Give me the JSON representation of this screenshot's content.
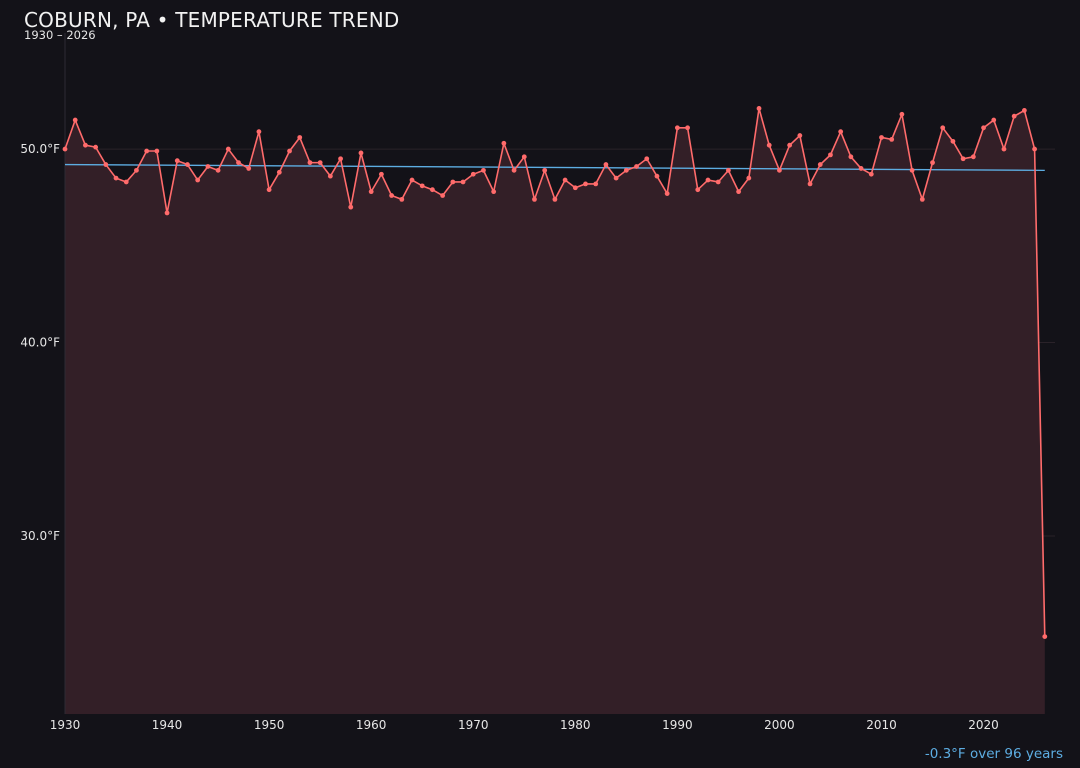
{
  "header": {
    "title": "COBURN, PA • TEMPERATURE TREND",
    "subtitle": "1930 – 2026"
  },
  "footer": {
    "trend_note": "-0.3°F over 96 years"
  },
  "colors": {
    "background": "#131218",
    "series_line": "#ff6b6b",
    "area_fill": "#331f27",
    "trend_line": "#5dade2",
    "grid": "#2a2229",
    "axis_text": "#e6e6e6"
  },
  "chart_data": {
    "type": "line",
    "title": "COBURN, PA • TEMPERATURE TREND",
    "subtitle": "1930 – 2026",
    "xlabel": "",
    "ylabel": "",
    "xlim": [
      1930,
      2027
    ],
    "ylim": [
      20.8,
      56
    ],
    "x_ticks": [
      1930,
      1940,
      1950,
      1960,
      1970,
      1980,
      1990,
      2000,
      2010,
      2020
    ],
    "y_ticks": [
      30.0,
      40.0,
      50.0
    ],
    "y_tick_labels": [
      "30.0°F",
      "40.0°F",
      "50.0°F"
    ],
    "grid": true,
    "area_under_line": true,
    "series": [
      {
        "x": [
          1930,
          1931,
          1932,
          1933,
          1934,
          1935,
          1936,
          1937,
          1938,
          1939,
          1940,
          1941,
          1942,
          1943,
          1944,
          1945,
          1946,
          1947,
          1948,
          1949,
          1950,
          1951,
          1952,
          1953,
          1954,
          1955,
          1956,
          1957,
          1958,
          1959,
          1960,
          1961,
          1962,
          1963,
          1964,
          1965,
          1966,
          1967,
          1968,
          1969,
          1970,
          1971,
          1972,
          1973,
          1974,
          1975,
          1976,
          1977,
          1978,
          1979,
          1980,
          1981,
          1982,
          1983,
          1984,
          1985,
          1986,
          1987,
          1988,
          1989,
          1990,
          1991,
          1992,
          1993,
          1994,
          1995,
          1996,
          1997,
          1998,
          1999,
          2000,
          2001,
          2002,
          2003,
          2004,
          2005,
          2006,
          2007,
          2008,
          2009,
          2010,
          2011,
          2012,
          2013,
          2014,
          2015,
          2016,
          2017,
          2018,
          2019,
          2020,
          2021,
          2022,
          2023,
          2024,
          2025,
          2026
        ],
        "values": [
          50.0,
          51.5,
          50.2,
          50.1,
          49.2,
          48.5,
          48.3,
          48.9,
          49.9,
          49.9,
          46.7,
          49.4,
          49.2,
          48.4,
          49.1,
          48.9,
          50.0,
          49.3,
          49.0,
          50.9,
          47.9,
          48.8,
          49.9,
          50.6,
          49.3,
          49.3,
          48.6,
          49.5,
          47.0,
          49.8,
          47.8,
          48.7,
          47.6,
          47.4,
          48.4,
          48.1,
          47.9,
          47.6,
          48.3,
          48.3,
          48.7,
          48.9,
          47.8,
          50.3,
          48.9,
          49.6,
          47.4,
          48.9,
          47.4,
          48.4,
          48.0,
          48.2,
          48.2,
          49.2,
          48.5,
          48.9,
          49.1,
          49.5,
          48.6,
          47.7,
          51.1,
          51.1,
          47.9,
          48.4,
          48.3,
          48.9,
          47.8,
          48.5,
          52.1,
          50.2,
          48.9,
          50.2,
          50.7,
          48.2,
          49.2,
          49.7,
          50.9,
          49.6,
          49.0,
          48.7,
          50.6,
          50.5,
          51.8,
          48.9,
          47.4,
          49.3,
          51.1,
          50.4,
          49.5,
          49.6,
          51.1,
          51.5,
          50.0,
          51.7,
          52.0,
          50.0,
          24.8
        ]
      }
    ],
    "trend_line": {
      "start": {
        "x": 1930,
        "y": 49.2
      },
      "end": {
        "x": 2026,
        "y": 48.9
      },
      "change_label": "-0.3°F over 96 years"
    }
  }
}
